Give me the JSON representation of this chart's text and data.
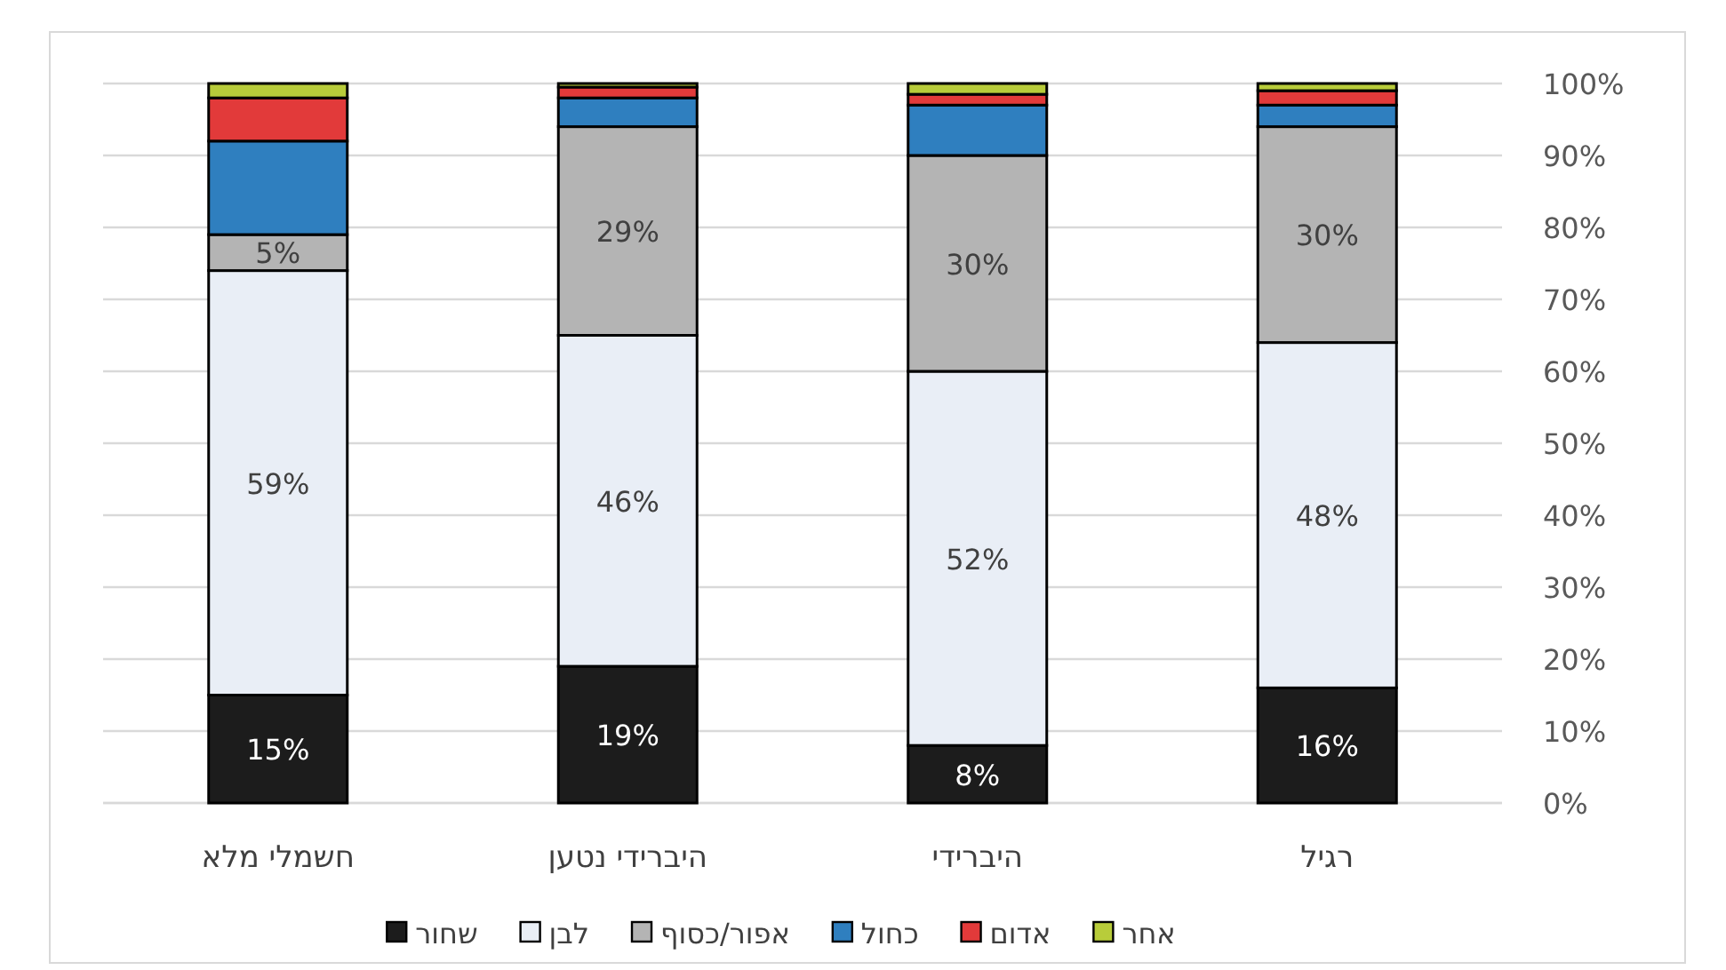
{
  "chart_data": {
    "type": "bar",
    "stacked": true,
    "categories": [
      "חשמלי מלא",
      "היברידי נטען",
      "היברידי",
      "רגיל"
    ],
    "series": [
      {
        "name": "שחור",
        "color": "#1c1c1c",
        "values": [
          15,
          19,
          8,
          16
        ],
        "value_labels": [
          "15%",
          "19%",
          "8%",
          "16%"
        ]
      },
      {
        "name": "לבן",
        "color": "#e9eef6",
        "values": [
          59,
          46,
          52,
          48
        ],
        "value_labels": [
          "59%",
          "46%",
          "52%",
          "48%"
        ]
      },
      {
        "name": "אפור/כסוף",
        "color": "#b4b4b4",
        "values": [
          5,
          29,
          30,
          30
        ],
        "value_labels": [
          "5%",
          "29%",
          "30%",
          "30%"
        ]
      },
      {
        "name": "כחול",
        "color": "#2f7fbf",
        "values": [
          13,
          4,
          7,
          3
        ]
      },
      {
        "name": "אדום",
        "color": "#e23a3a",
        "values": [
          6,
          1.5,
          1.5,
          2
        ]
      },
      {
        "name": "אחר",
        "color": "#b8cc3a",
        "values": [
          2,
          0.5,
          1.5,
          1
        ]
      }
    ],
    "ylim": [
      0,
      100
    ],
    "yticks": [
      {
        "value": 0,
        "label": "0%"
      },
      {
        "value": 10,
        "label": "10%"
      },
      {
        "value": 20,
        "label": "20%"
      },
      {
        "value": 30,
        "label": "30%"
      },
      {
        "value": 40,
        "label": "40%"
      },
      {
        "value": 50,
        "label": "50%"
      },
      {
        "value": 60,
        "label": "60%"
      },
      {
        "value": 70,
        "label": "70%"
      },
      {
        "value": 80,
        "label": "80%"
      },
      {
        "value": 90,
        "label": "90%"
      },
      {
        "value": 100,
        "label": "100%"
      }
    ],
    "grid": "y",
    "legend": "bottom"
  }
}
